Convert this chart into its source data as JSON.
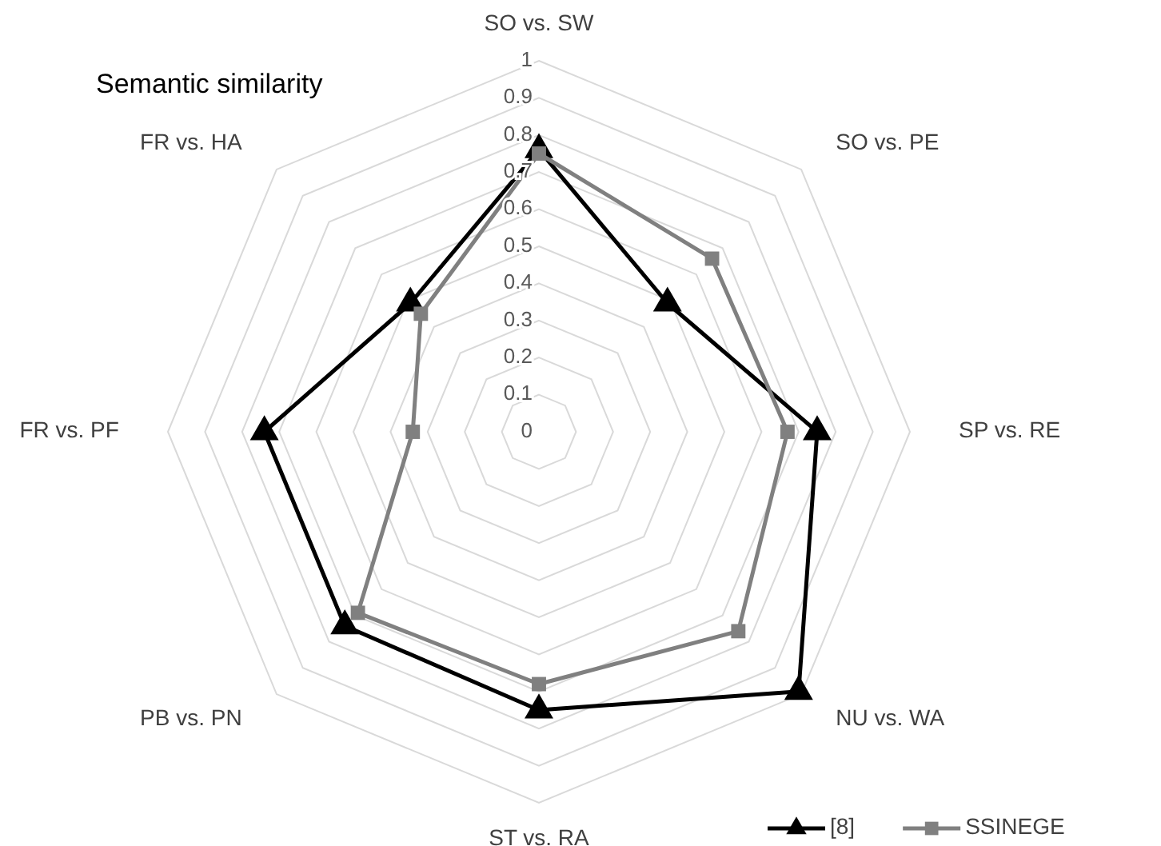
{
  "chart_data": {
    "type": "radar",
    "title": "Semantic similarity",
    "categories": [
      "SO vs. SW",
      "SO vs. PE",
      "SP vs. RE",
      "NU vs. WA",
      "ST vs. RA",
      "PB vs. PN",
      "FR vs. PF",
      "FR vs. HA"
    ],
    "series": [
      {
        "name": "[8]",
        "color": "#000000",
        "marker": "triangle",
        "values": [
          0.76,
          0.49,
          0.75,
          0.99,
          0.75,
          0.74,
          0.74,
          0.49
        ]
      },
      {
        "name": "SSINEGE",
        "color": "#808080",
        "marker": "square",
        "values": [
          0.75,
          0.66,
          0.67,
          0.76,
          0.68,
          0.69,
          0.34,
          0.45
        ]
      }
    ],
    "ylim": [
      0,
      1
    ],
    "yticks": [
      0,
      0.1,
      0.2,
      0.3,
      0.4,
      0.5,
      0.6,
      0.7,
      0.8,
      0.9,
      1
    ],
    "grid": true,
    "legend": "bottom right"
  }
}
